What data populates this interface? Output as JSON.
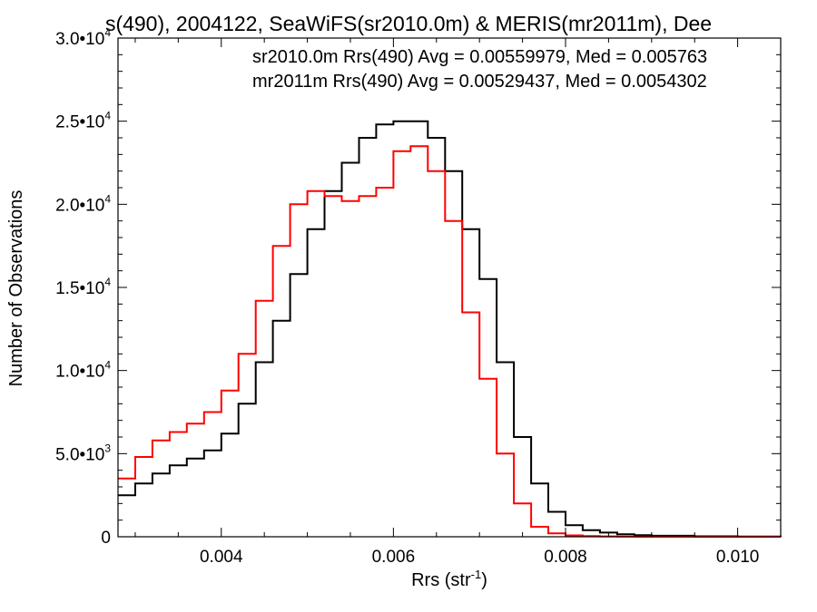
{
  "chart_data": {
    "type": "line",
    "title": "s(490), 2004122, SeaWiFS(sr2010.0m) & MERIS(mr2011m), Dee",
    "xlabel": "Rrs (str",
    "xlabel_sup": "-1",
    "xlabel_suffix": ")",
    "ylabel": "Number of Observations",
    "xlim": [
      0.0028,
      0.0105
    ],
    "ylim": [
      0,
      30000
    ],
    "xticks": [
      {
        "value": 0.004,
        "label": "0.004"
      },
      {
        "value": 0.006,
        "label": "0.006"
      },
      {
        "value": 0.008,
        "label": "0.008"
      },
      {
        "value": 0.01,
        "label": "0.010"
      }
    ],
    "yticks": [
      {
        "value": 0,
        "label": "0",
        "sup": ""
      },
      {
        "value": 5000,
        "label": "5.0•10",
        "sup": "3"
      },
      {
        "value": 10000,
        "label": "1.0•10",
        "sup": "4"
      },
      {
        "value": 15000,
        "label": "1.5•10",
        "sup": "4"
      },
      {
        "value": 20000,
        "label": "2.0•10",
        "sup": "4"
      },
      {
        "value": 25000,
        "label": "2.5•10",
        "sup": "4"
      },
      {
        "value": 30000,
        "label": "3.0•10",
        "sup": "4"
      }
    ],
    "legend_placement": "top-right",
    "series": [
      {
        "label": "sr2010.0m Rrs(490) Avg = 0.00559979, Med = 0.005763",
        "color": "#000000",
        "x": [
          0.0028,
          0.003,
          0.0032,
          0.0034,
          0.0036,
          0.0038,
          0.004,
          0.0042,
          0.0044,
          0.0046,
          0.0048,
          0.005,
          0.0052,
          0.0054,
          0.0056,
          0.0058,
          0.006,
          0.0062,
          0.0064,
          0.0066,
          0.0068,
          0.007,
          0.0072,
          0.0074,
          0.0076,
          0.0078,
          0.008,
          0.0082,
          0.0084,
          0.0086,
          0.0088,
          0.009,
          0.0095,
          0.01,
          0.0105
        ],
        "y": [
          2500,
          3200,
          3800,
          4300,
          4700,
          5200,
          6200,
          8000,
          10500,
          13000,
          15800,
          18500,
          20800,
          22500,
          24000,
          24800,
          25000,
          25000,
          24000,
          22000,
          18500,
          15500,
          10500,
          6000,
          3200,
          1500,
          700,
          400,
          250,
          150,
          100,
          60,
          30,
          15,
          0
        ]
      },
      {
        "label": "mr2011m Rrs(490) Avg = 0.00529437, Med = 0.0054302",
        "color": "#ff0000",
        "x": [
          0.0028,
          0.003,
          0.0032,
          0.0034,
          0.0036,
          0.0038,
          0.004,
          0.0042,
          0.0044,
          0.0046,
          0.0048,
          0.005,
          0.0052,
          0.0054,
          0.0056,
          0.0058,
          0.006,
          0.0062,
          0.0064,
          0.0066,
          0.0068,
          0.007,
          0.0072,
          0.0074,
          0.0076,
          0.0078,
          0.008,
          0.0082,
          0.0084,
          0.0086,
          0.0088,
          0.009,
          0.0095,
          0.01,
          0.0105
        ],
        "y": [
          3500,
          4800,
          5800,
          6300,
          6800,
          7500,
          8800,
          11000,
          14200,
          17500,
          20000,
          20800,
          20500,
          20200,
          20500,
          21000,
          23200,
          23500,
          22000,
          19000,
          13500,
          9500,
          5000,
          2000,
          600,
          200,
          80,
          40,
          20,
          10,
          5,
          3,
          1,
          0,
          0
        ]
      }
    ]
  }
}
